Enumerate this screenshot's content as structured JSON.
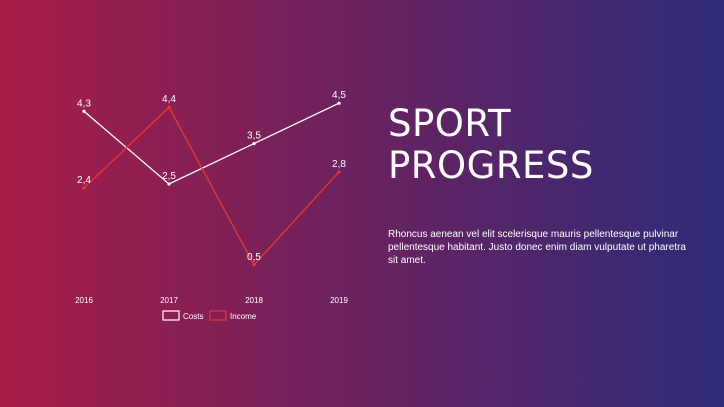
{
  "slide": {
    "title_lines": [
      "SPORT",
      "PROGRESS"
    ],
    "body": "Rhoncus aenean vel elit scelerisque mauris pellentesque pulvinar pellentesque habitant. Justo donec enim diam vulputate ut pharetra sit amet.",
    "background_colors": [
      "#a81d47",
      "#6a2260",
      "#2e2b78"
    ]
  },
  "chart_data": {
    "type": "line",
    "categories": [
      "2016",
      "2017",
      "2018",
      "2019"
    ],
    "series": [
      {
        "name": "Costs",
        "values": [
          4.3,
          2.5,
          3.5,
          4.5
        ],
        "color": "#ffffff",
        "labels": [
          "4,3",
          "2,5",
          "3,5",
          "4,5"
        ]
      },
      {
        "name": "Income",
        "values": [
          2.4,
          4.4,
          0.5,
          2.8
        ],
        "color": "#e8392f",
        "labels": [
          "2,4",
          "4,4",
          "0,5",
          "2,8"
        ]
      }
    ],
    "ylim": [
      0,
      5
    ],
    "grid": false,
    "legend": "bottom"
  }
}
